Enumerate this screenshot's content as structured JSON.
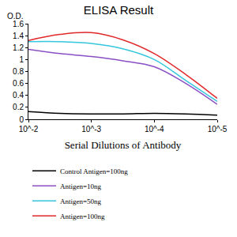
{
  "chart_data": {
    "type": "line",
    "title": "ELISA Result",
    "ylabel": "O.D.",
    "xlabel": "Serial Dilutions of Antibody",
    "log": "x",
    "x": [
      0.01,
      0.00316,
      0.001,
      0.000316,
      0.0001,
      3.16e-05,
      1e-05
    ],
    "series": [
      {
        "name": "Control Antigen=100ng",
        "color": "#000000",
        "values": [
          0.13,
          0.1,
          0.09,
          0.09,
          0.1,
          0.09,
          0.07
        ]
      },
      {
        "name": "Antigen=10ng",
        "color": "#8a4fc4",
        "values": [
          1.17,
          1.1,
          1.05,
          0.98,
          0.88,
          0.6,
          0.25
        ]
      },
      {
        "name": "Antigen=50ng",
        "color": "#36c6dd",
        "values": [
          1.3,
          1.3,
          1.27,
          1.18,
          1.0,
          0.65,
          0.3
        ]
      },
      {
        "name": "Antigen=100ng",
        "color": "#e0282a",
        "values": [
          1.32,
          1.42,
          1.45,
          1.33,
          1.1,
          0.75,
          0.35
        ]
      }
    ],
    "xlim": [
      0.01,
      1e-05
    ],
    "xticks": [
      {
        "value": 0.01,
        "label": "10^-2"
      },
      {
        "value": 0.001,
        "label": "10^-3"
      },
      {
        "value": 0.0001,
        "label": "10^-4"
      },
      {
        "value": 1e-05,
        "label": "10^-5"
      }
    ],
    "ylim": [
      0,
      1.6
    ],
    "yticks": [
      0,
      0.2,
      0.4,
      0.6,
      0.8,
      1,
      1.2,
      1.4,
      1.6
    ],
    "grid": false,
    "legend": "bottom"
  }
}
